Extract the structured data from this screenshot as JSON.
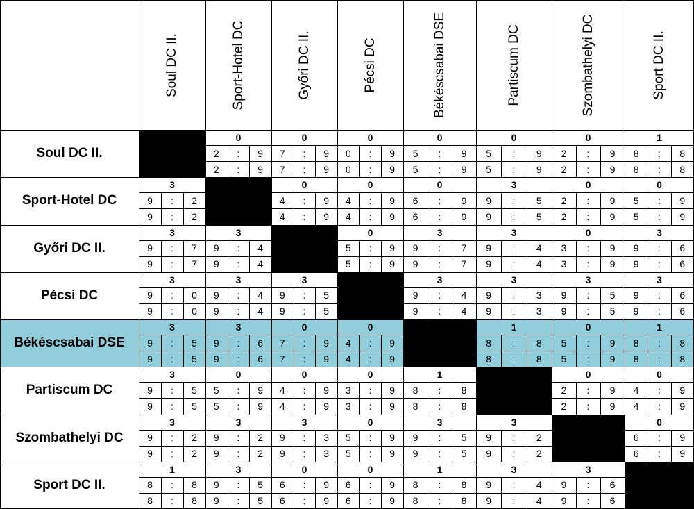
{
  "separator": ":",
  "columns": [
    "Soul DC II.",
    "Sport-Hotel DC",
    "Győri DC II.",
    "Pécsi DC",
    "Békéscsabai DSE",
    "Partiscum DC",
    "Szombathelyi DC",
    "Sport DC II."
  ],
  "rows": [
    {
      "team": "Soul DC II.",
      "cells": [
        null,
        {
          "points": 0,
          "legs": [
            [
              2,
              9
            ],
            [
              2,
              9
            ]
          ]
        },
        {
          "points": 0,
          "legs": [
            [
              7,
              9
            ],
            [
              7,
              9
            ]
          ]
        },
        {
          "points": 0,
          "legs": [
            [
              0,
              9
            ],
            [
              0,
              9
            ]
          ]
        },
        {
          "points": 0,
          "legs": [
            [
              5,
              9
            ],
            [
              5,
              9
            ]
          ]
        },
        {
          "points": 0,
          "legs": [
            [
              5,
              9
            ],
            [
              5,
              9
            ]
          ]
        },
        {
          "points": 0,
          "legs": [
            [
              2,
              9
            ],
            [
              2,
              9
            ]
          ]
        },
        {
          "points": 1,
          "legs": [
            [
              8,
              8
            ],
            [
              8,
              8
            ]
          ]
        }
      ]
    },
    {
      "team": "Sport-Hotel DC",
      "cells": [
        {
          "points": 3,
          "legs": [
            [
              9,
              2
            ],
            [
              9,
              2
            ]
          ]
        },
        null,
        {
          "points": 0,
          "legs": [
            [
              4,
              9
            ],
            [
              4,
              9
            ]
          ]
        },
        {
          "points": 0,
          "legs": [
            [
              4,
              9
            ],
            [
              4,
              9
            ]
          ]
        },
        {
          "points": 0,
          "legs": [
            [
              6,
              9
            ],
            [
              6,
              9
            ]
          ]
        },
        {
          "points": 3,
          "legs": [
            [
              9,
              5
            ],
            [
              9,
              5
            ]
          ]
        },
        {
          "points": 0,
          "legs": [
            [
              2,
              9
            ],
            [
              2,
              9
            ]
          ]
        },
        {
          "points": 0,
          "legs": [
            [
              5,
              9
            ],
            [
              5,
              9
            ]
          ]
        }
      ]
    },
    {
      "team": "Győri DC II.",
      "cells": [
        {
          "points": 3,
          "legs": [
            [
              9,
              7
            ],
            [
              9,
              7
            ]
          ]
        },
        {
          "points": 3,
          "legs": [
            [
              9,
              4
            ],
            [
              9,
              4
            ]
          ]
        },
        null,
        {
          "points": 0,
          "legs": [
            [
              5,
              9
            ],
            [
              5,
              9
            ]
          ]
        },
        {
          "points": 3,
          "legs": [
            [
              9,
              7
            ],
            [
              9,
              7
            ]
          ]
        },
        {
          "points": 3,
          "legs": [
            [
              9,
              4
            ],
            [
              9,
              4
            ]
          ]
        },
        {
          "points": 0,
          "legs": [
            [
              3,
              9
            ],
            [
              3,
              9
            ]
          ]
        },
        {
          "points": 3,
          "legs": [
            [
              9,
              6
            ],
            [
              9,
              6
            ]
          ]
        }
      ]
    },
    {
      "team": "Pécsi DC",
      "cells": [
        {
          "points": 3,
          "legs": [
            [
              9,
              0
            ],
            [
              9,
              0
            ]
          ]
        },
        {
          "points": 3,
          "legs": [
            [
              9,
              4
            ],
            [
              9,
              4
            ]
          ]
        },
        {
          "points": 3,
          "legs": [
            [
              9,
              5
            ],
            [
              9,
              5
            ]
          ]
        },
        null,
        {
          "points": 3,
          "legs": [
            [
              9,
              4
            ],
            [
              9,
              4
            ]
          ]
        },
        {
          "points": 3,
          "legs": [
            [
              9,
              3
            ],
            [
              9,
              3
            ]
          ]
        },
        {
          "points": 3,
          "legs": [
            [
              9,
              5
            ],
            [
              9,
              5
            ]
          ]
        },
        {
          "points": 3,
          "legs": [
            [
              9,
              6
            ],
            [
              9,
              6
            ]
          ]
        }
      ]
    },
    {
      "team": "Békéscsabai DSE",
      "highlight": true,
      "cells": [
        {
          "points": 3,
          "legs": [
            [
              9,
              5
            ],
            [
              9,
              5
            ]
          ]
        },
        {
          "points": 3,
          "legs": [
            [
              9,
              6
            ],
            [
              9,
              6
            ]
          ]
        },
        {
          "points": 0,
          "legs": [
            [
              7,
              9
            ],
            [
              7,
              9
            ]
          ]
        },
        {
          "points": 0,
          "legs": [
            [
              4,
              9
            ],
            [
              4,
              9
            ]
          ]
        },
        null,
        {
          "points": 1,
          "legs": [
            [
              8,
              8
            ],
            [
              8,
              8
            ]
          ]
        },
        {
          "points": 0,
          "legs": [
            [
              5,
              9
            ],
            [
              5,
              9
            ]
          ]
        },
        {
          "points": 1,
          "legs": [
            [
              8,
              8
            ],
            [
              8,
              8
            ]
          ]
        }
      ]
    },
    {
      "team": "Partiscum DC",
      "cells": [
        {
          "points": 3,
          "legs": [
            [
              9,
              5
            ],
            [
              9,
              5
            ]
          ]
        },
        {
          "points": 0,
          "legs": [
            [
              5,
              9
            ],
            [
              5,
              9
            ]
          ]
        },
        {
          "points": 0,
          "legs": [
            [
              4,
              9
            ],
            [
              4,
              9
            ]
          ]
        },
        {
          "points": 0,
          "legs": [
            [
              3,
              9
            ],
            [
              3,
              9
            ]
          ]
        },
        {
          "points": 1,
          "legs": [
            [
              8,
              8
            ],
            [
              8,
              8
            ]
          ]
        },
        null,
        {
          "points": 0,
          "legs": [
            [
              2,
              9
            ],
            [
              2,
              9
            ]
          ]
        },
        {
          "points": 0,
          "legs": [
            [
              4,
              9
            ],
            [
              4,
              9
            ]
          ]
        }
      ]
    },
    {
      "team": "Szombathelyi DC",
      "cells": [
        {
          "points": 3,
          "legs": [
            [
              9,
              2
            ],
            [
              9,
              2
            ]
          ]
        },
        {
          "points": 3,
          "legs": [
            [
              9,
              2
            ],
            [
              9,
              2
            ]
          ]
        },
        {
          "points": 3,
          "legs": [
            [
              9,
              3
            ],
            [
              9,
              3
            ]
          ]
        },
        {
          "points": 0,
          "legs": [
            [
              5,
              9
            ],
            [
              5,
              9
            ]
          ]
        },
        {
          "points": 3,
          "legs": [
            [
              9,
              5
            ],
            [
              9,
              5
            ]
          ]
        },
        {
          "points": 3,
          "legs": [
            [
              9,
              2
            ],
            [
              9,
              2
            ]
          ]
        },
        null,
        {
          "points": 0,
          "legs": [
            [
              6,
              9
            ],
            [
              6,
              9
            ]
          ]
        }
      ]
    },
    {
      "team": "Sport DC II.",
      "cells": [
        {
          "points": 1,
          "legs": [
            [
              8,
              8
            ],
            [
              8,
              8
            ]
          ]
        },
        {
          "points": 3,
          "legs": [
            [
              9,
              5
            ],
            [
              9,
              5
            ]
          ]
        },
        {
          "points": 0,
          "legs": [
            [
              6,
              9
            ],
            [
              6,
              9
            ]
          ]
        },
        {
          "points": 0,
          "legs": [
            [
              6,
              9
            ],
            [
              6,
              9
            ]
          ]
        },
        {
          "points": 1,
          "legs": [
            [
              8,
              8
            ],
            [
              8,
              8
            ]
          ]
        },
        {
          "points": 3,
          "legs": [
            [
              9,
              4
            ],
            [
              9,
              4
            ]
          ]
        },
        {
          "points": 3,
          "legs": [
            [
              9,
              6
            ],
            [
              9,
              6
            ]
          ]
        },
        null
      ]
    }
  ]
}
